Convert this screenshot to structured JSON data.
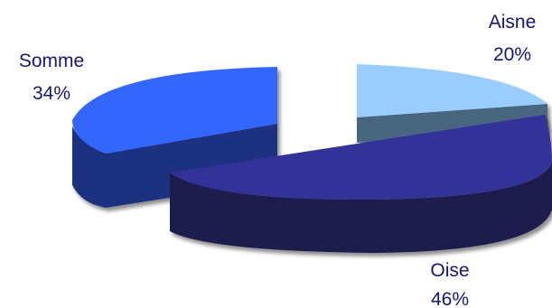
{
  "chart_data": {
    "type": "pie",
    "title": "",
    "three_d": true,
    "exploded": true,
    "slices": [
      {
        "name": "Aisne",
        "value": 20,
        "label": "20%",
        "top_color": "#99ccff",
        "side_color": "#4a6680"
      },
      {
        "name": "Oise",
        "value": 46,
        "label": "46%",
        "top_color": "#333399",
        "side_color": "#1b1b4d"
      },
      {
        "name": "Somme",
        "value": 34,
        "label": "34%",
        "top_color": "#3366ff",
        "side_color": "#1a3380"
      }
    ],
    "label_color": "#16167a",
    "legend": "none"
  }
}
